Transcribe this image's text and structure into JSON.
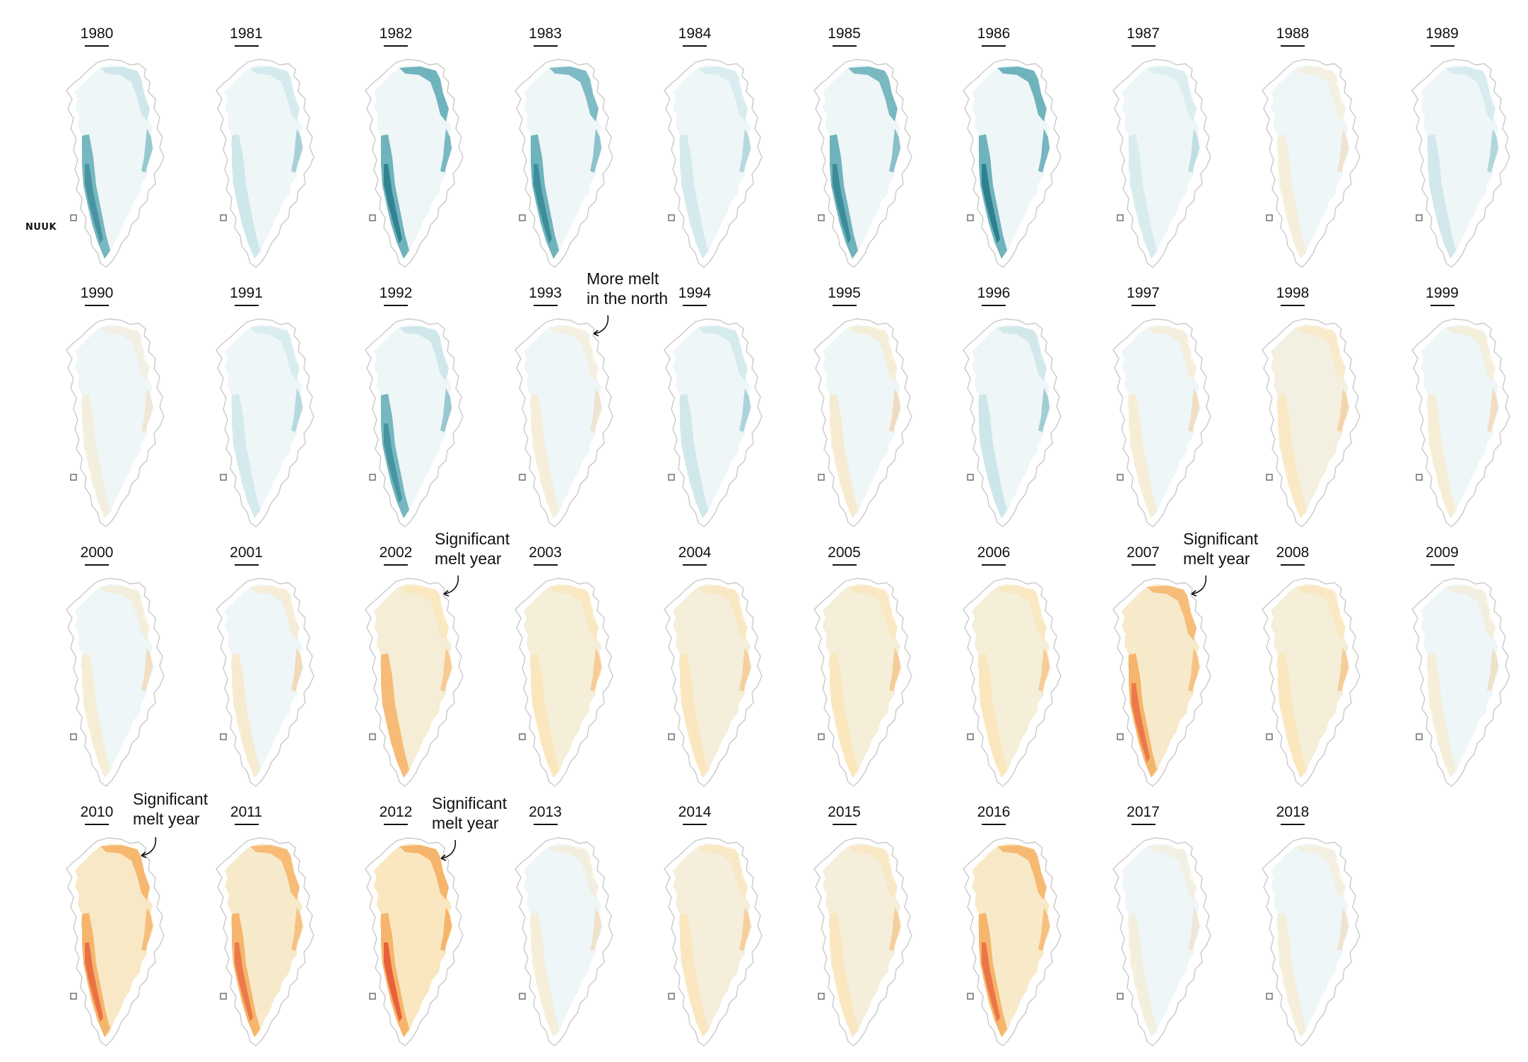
{
  "years_row1": [
    "1980",
    "1981",
    "1982",
    "1983",
    "1984",
    "1985",
    "1986",
    "1987",
    "1988",
    "1989"
  ],
  "years_row2": [
    "1990",
    "1991",
    "1992",
    "1993",
    "1994",
    "1995",
    "1996",
    "1997",
    "1998",
    "1999"
  ],
  "years_row3": [
    "2000",
    "2001",
    "2002",
    "2003",
    "2004",
    "2005",
    "2006",
    "2007",
    "2008",
    "2009"
  ],
  "years_row4": [
    "2010",
    "2011",
    "2012",
    "2013",
    "2014",
    "2015",
    "2016",
    "2017",
    "2018"
  ],
  "location_label": "NUUK",
  "annotations": [
    {
      "line1": "More melt",
      "line2": "in the north"
    },
    {
      "line1": "Significant",
      "line2": "melt year"
    },
    {
      "line1": "Significant",
      "line2": "melt year"
    },
    {
      "line1": "Significant",
      "line2": "melt year"
    },
    {
      "line1": "Significant",
      "line2": "melt year"
    }
  ],
  "colors": {
    "base_ice": "#eef6f8",
    "coast": "#c9c9c9",
    "below_light": "#c6e3e6",
    "below_mid": "#6fb3bd",
    "below_dark": "#2a7d8c",
    "above_light": "#fbe5b8",
    "above_mid": "#f6b56c",
    "above_dark": "#e8603c"
  },
  "melt_index": {
    "1980": -0.6,
    "1981": -0.45,
    "1982": -0.9,
    "1983": -0.7,
    "1984": -0.3,
    "1985": -0.75,
    "1986": -0.95,
    "1987": -0.2,
    "1988": 0.1,
    "1989": -0.35,
    "1990": 0.05,
    "1991": -0.3,
    "1992": -0.6,
    "1993": 0.1,
    "1994": -0.4,
    "1995": 0.25,
    "1996": -0.5,
    "1997": 0.2,
    "1998": 0.35,
    "1999": 0.2,
    "2000": 0.2,
    "2001": 0.3,
    "2002": 0.55,
    "2003": 0.5,
    "2004": 0.45,
    "2005": 0.5,
    "2006": 0.5,
    "2007": 0.7,
    "2008": 0.5,
    "2009": 0.15,
    "2010": 0.8,
    "2011": 0.7,
    "2012": 1.0,
    "2013": 0.15,
    "2014": 0.45,
    "2015": 0.45,
    "2016": 0.75,
    "2017": 0.05,
    "2018": 0.1
  }
}
